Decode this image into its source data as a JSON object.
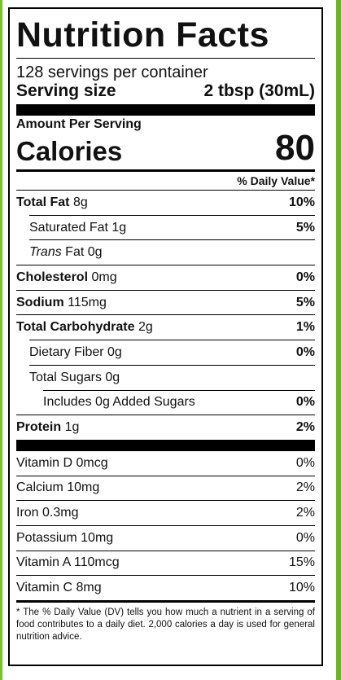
{
  "title": "Nutrition Facts",
  "servings_per_container": "128 servings per container",
  "serving_size": {
    "label": "Serving size",
    "value": "2 tbsp (30mL)"
  },
  "amount_per_serving": "Amount Per Serving",
  "calories": {
    "label": "Calories",
    "value": "80"
  },
  "daily_value_header": "% Daily Value*",
  "nutrients": [
    {
      "label": "Total Fat",
      "amount": "8g",
      "dv": "10%"
    },
    {
      "label": "Saturated Fat",
      "amount": "1g",
      "dv": "5%"
    },
    {
      "label_italic": "Trans",
      "label": "Fat",
      "amount": "0g",
      "dv": ""
    },
    {
      "label": "Cholesterol",
      "amount": "0mg",
      "dv": "0%"
    },
    {
      "label": "Sodium",
      "amount": "115mg",
      "dv": "5%"
    },
    {
      "label": "Total Carbohydrate",
      "amount": "2g",
      "dv": "1%"
    },
    {
      "label": "Dietary Fiber",
      "amount": "0g",
      "dv": "0%"
    },
    {
      "label": "Total Sugars",
      "amount": "0g",
      "dv": ""
    },
    {
      "label": "Includes 0g Added Sugars",
      "amount": "",
      "dv": "0%"
    },
    {
      "label": "Protein",
      "amount": "1g",
      "dv": "2%"
    }
  ],
  "vitamins": [
    {
      "label": "Vitamin D",
      "amount": "0mcg",
      "dv": "0%"
    },
    {
      "label": "Calcium",
      "amount": "10mg",
      "dv": "2%"
    },
    {
      "label": "Iron",
      "amount": "0.3mg",
      "dv": "2%"
    },
    {
      "label": "Potassium",
      "amount": "10mg",
      "dv": "0%"
    },
    {
      "label": "Vitamin A",
      "amount": "110mcg",
      "dv": "15%"
    },
    {
      "label": "Vitamin C",
      "amount": "8mg",
      "dv": "10%"
    }
  ],
  "footnote": "* The % Daily Value (DV) tells you how much a nutrient in a serving of food contributes to a daily diet. 2,000 calories a day is used for general nutrition advice."
}
